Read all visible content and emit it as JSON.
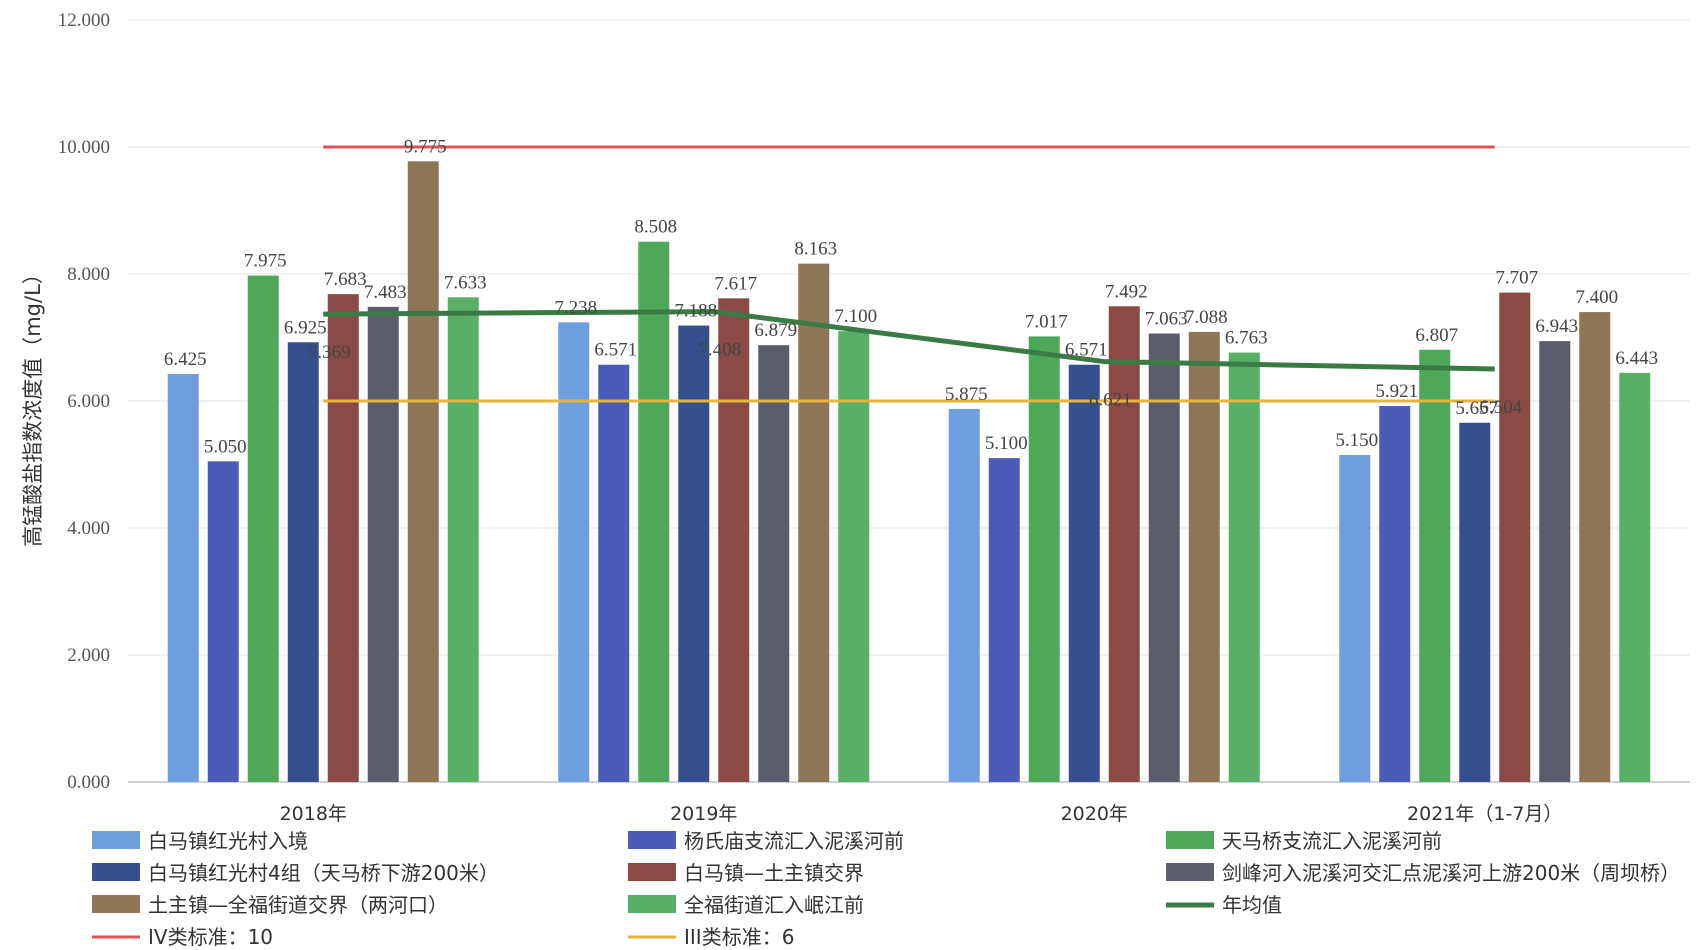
{
  "chart_data": {
    "type": "bar",
    "title": "",
    "xlabel": "",
    "ylabel": "高锰酸盐指数浓度值（mg/L）",
    "ylim": [
      0,
      12
    ],
    "yticks": [
      "0.000",
      "2.000",
      "4.000",
      "6.000",
      "8.000",
      "10.000",
      "12.000"
    ],
    "grid": true,
    "legend_position": "bottom",
    "categories": [
      "2018年",
      "2019年",
      "2020年",
      "2021年（1-7月）"
    ],
    "series": [
      {
        "name": "白马镇红光村入境",
        "color": "#6f9ede",
        "values": [
          6.425,
          7.238,
          5.875,
          5.15
        ],
        "labels": [
          "6.425",
          "7.238",
          "5.875",
          "5.150"
        ]
      },
      {
        "name": "杨氏庙支流汇入泥溪河前",
        "color": "#4a5bb8",
        "values": [
          5.05,
          6.571,
          5.1,
          5.921
        ],
        "labels": [
          "5.050",
          "6.571",
          "5.100",
          "5.921"
        ]
      },
      {
        "name": "天马桥支流汇入泥溪河前",
        "color": "#4fa85a",
        "values": [
          7.975,
          8.508,
          7.017,
          6.807
        ],
        "labels": [
          "7.975",
          "8.508",
          "7.017",
          "6.807"
        ]
      },
      {
        "name": "白马镇红光村4组（天马桥下游200米）",
        "color": "#35508f",
        "values": [
          6.925,
          7.188,
          6.571,
          5.657
        ],
        "labels": [
          "6.925",
          "7.188",
          "6.571",
          "5.657"
        ]
      },
      {
        "name": "白马镇—土主镇交界",
        "color": "#8a4a46",
        "values": [
          7.683,
          7.617,
          7.492,
          7.707
        ],
        "labels": [
          "7.683",
          "7.617",
          "7.492",
          "7.707"
        ]
      },
      {
        "name": "剑峰河入泥溪河交汇点泥溪河上游200米（周坝桥）",
        "color": "#5a5d6a",
        "values": [
          7.483,
          6.879,
          7.063,
          6.943
        ],
        "labels": [
          "7.483",
          "6.879",
          "7.063",
          "6.943"
        ]
      },
      {
        "name": "土主镇—全福街道交界（两河口）",
        "color": "#8c7656",
        "values": [
          9.775,
          8.163,
          7.088,
          7.4
        ],
        "labels": [
          "9.775",
          "8.163",
          "7.088",
          "7.400"
        ]
      },
      {
        "name": "全福街道汇入岷江前",
        "color": "#58b067",
        "values": [
          7.633,
          7.1,
          6.763,
          6.443
        ],
        "labels": [
          "7.633",
          "7.100",
          "6.763",
          "6.443"
        ]
      }
    ],
    "lines": [
      {
        "name": "年均值",
        "color": "#3a7a45",
        "values": [
          7.369,
          7.408,
          6.621,
          6.504
        ],
        "labels": [
          "7.369",
          "7.408",
          "6.621",
          "6.504"
        ]
      }
    ],
    "reference_lines": [
      {
        "name": "IV类标准：10",
        "value": 10,
        "color": "#e0505a"
      },
      {
        "name": "III类标准：6",
        "value": 6,
        "color": "#e8b53a"
      }
    ]
  }
}
